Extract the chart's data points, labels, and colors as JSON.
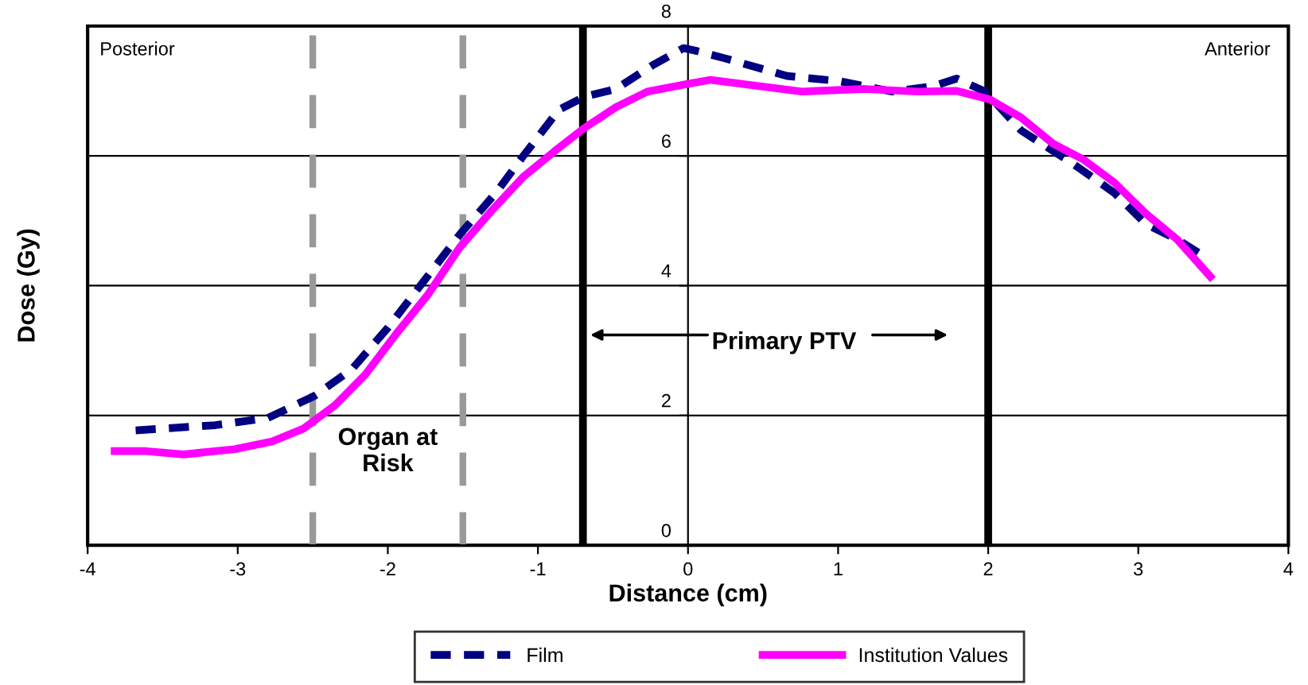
{
  "chart_data": {
    "type": "line",
    "xlabel": "Distance (cm)",
    "ylabel": "Dose (Gy)",
    "xlim": [
      -4,
      4
    ],
    "xticks": [
      -4,
      -3,
      -2,
      -1,
      0,
      1,
      2,
      3,
      4
    ],
    "ylim": [
      0,
      8
    ],
    "yticks": [
      0,
      2,
      4,
      6,
      8
    ],
    "grid": "y",
    "legend": "bottom",
    "series": [
      {
        "name": "Film",
        "color": "#000080",
        "line_style": "dashed",
        "x": [
          -3.68,
          -3.15,
          -2.8,
          -2.49,
          -2.24,
          -2.0,
          -1.76,
          -1.52,
          -1.28,
          -1.1,
          -0.86,
          -0.69,
          -0.48,
          -0.24,
          -0.03,
          0.05,
          0.25,
          0.66,
          1.01,
          1.36,
          1.63,
          1.79,
          1.98,
          2.22,
          2.57,
          2.84,
          3.05,
          3.26,
          3.4
        ],
        "values": [
          1.77,
          1.85,
          1.96,
          2.3,
          2.71,
          3.35,
          4.07,
          4.79,
          5.43,
          5.99,
          6.71,
          6.91,
          7.03,
          7.39,
          7.66,
          7.62,
          7.5,
          7.23,
          7.15,
          6.99,
          7.07,
          7.19,
          6.99,
          6.39,
          5.87,
          5.43,
          4.95,
          4.71,
          4.51
        ]
      },
      {
        "name": "Institution Values",
        "color": "#ff00ff",
        "line_style": "solid",
        "x": [
          -3.82,
          -3.61,
          -3.36,
          -3.02,
          -2.77,
          -2.56,
          -2.35,
          -2.15,
          -1.94,
          -1.73,
          -1.52,
          -1.31,
          -1.1,
          -0.89,
          -0.69,
          -0.48,
          -0.27,
          0.0,
          0.15,
          0.49,
          0.76,
          1.18,
          1.53,
          1.79,
          2.01,
          2.22,
          2.43,
          2.63,
          2.84,
          3.05,
          3.26,
          3.48
        ],
        "values": [
          1.45,
          1.45,
          1.4,
          1.48,
          1.6,
          1.8,
          2.16,
          2.63,
          3.27,
          3.87,
          4.59,
          5.15,
          5.67,
          6.07,
          6.43,
          6.75,
          6.99,
          7.11,
          7.17,
          7.07,
          6.99,
          7.03,
          6.99,
          7.0,
          6.87,
          6.59,
          6.19,
          5.95,
          5.59,
          5.11,
          4.71,
          4.14
        ]
      }
    ],
    "ref_lines": [
      {
        "axis": "x",
        "value": -2.5,
        "color": "#999999",
        "line_style": "dashed"
      },
      {
        "axis": "x",
        "value": -1.5,
        "color": "#999999",
        "line_style": "dashed"
      },
      {
        "axis": "x",
        "value": -0.7,
        "color": "#000000",
        "line_style": "solid"
      },
      {
        "axis": "x",
        "value": 2,
        "color": "#000000",
        "line_style": "solid"
      }
    ],
    "annotations": [
      "Posterior",
      "Anterior",
      "Organ at\nRisk",
      "Primary PTV"
    ]
  }
}
